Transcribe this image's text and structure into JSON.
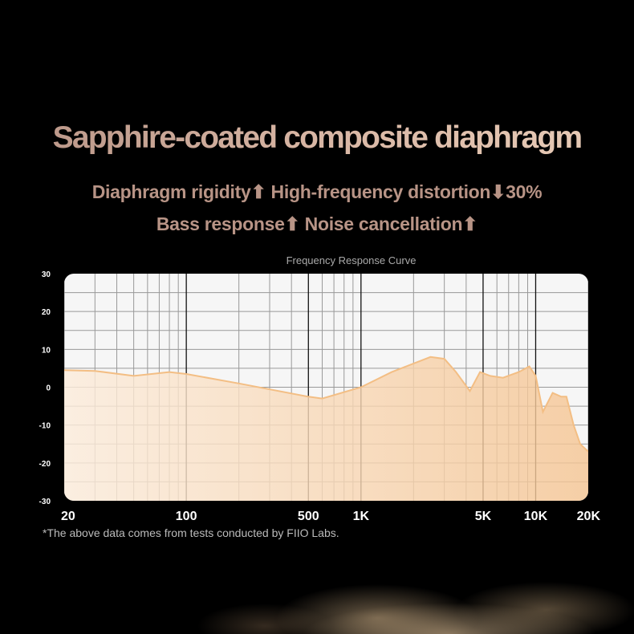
{
  "headline": "Sapphire-coated composite diaphragm",
  "subline_1": "Diaphragm rigidity⬆ High-frequency distortion⬇30%",
  "subline_2": "Bass response⬆ Noise cancellation⬆",
  "footnote": "*The above data comes from tests conducted by FIIO Labs.",
  "colors": {
    "headline": "#c9a594",
    "subtext": "#b89486",
    "fill_start": "#fbe9d6",
    "fill_end": "#f6c899",
    "line": "#f3be84",
    "background": "#000000"
  },
  "chart_data": {
    "type": "area",
    "title": "Frequency Response Curve",
    "xscale": "log",
    "xlim": [
      20,
      20000
    ],
    "ylim": [
      -30,
      30
    ],
    "grid": true,
    "x_ticks": [
      {
        "value": 20,
        "label": "20"
      },
      {
        "value": 100,
        "label": "100"
      },
      {
        "value": 500,
        "label": "500"
      },
      {
        "value": 1000,
        "label": "1K"
      },
      {
        "value": 5000,
        "label": "5K"
      },
      {
        "value": 10000,
        "label": "10K"
      },
      {
        "value": 20000,
        "label": "20K"
      }
    ],
    "y_ticks": [
      {
        "value": 30,
        "label": "30"
      },
      {
        "value": 20,
        "label": "20"
      },
      {
        "value": 10,
        "label": "10"
      },
      {
        "value": 0,
        "label": "0"
      },
      {
        "value": -10,
        "label": "-10"
      },
      {
        "value": -20,
        "label": "-20"
      },
      {
        "value": -30,
        "label": "-30"
      }
    ],
    "x": [
      20,
      30,
      50,
      80,
      100,
      200,
      500,
      600,
      1000,
      1500,
      2500,
      3000,
      3500,
      4200,
      4800,
      5500,
      6500,
      8000,
      9200,
      10000,
      11000,
      12500,
      14000,
      15000,
      16500,
      18000,
      20000
    ],
    "y": [
      4.5,
      4.3,
      3,
      4,
      3.5,
      1,
      -2.5,
      -3,
      0,
      4,
      8,
      7.5,
      4,
      -1,
      4,
      3,
      2.5,
      4,
      5.5,
      3,
      -6.5,
      -1.5,
      -2.5,
      -2.5,
      -10,
      -15,
      -17
    ]
  }
}
